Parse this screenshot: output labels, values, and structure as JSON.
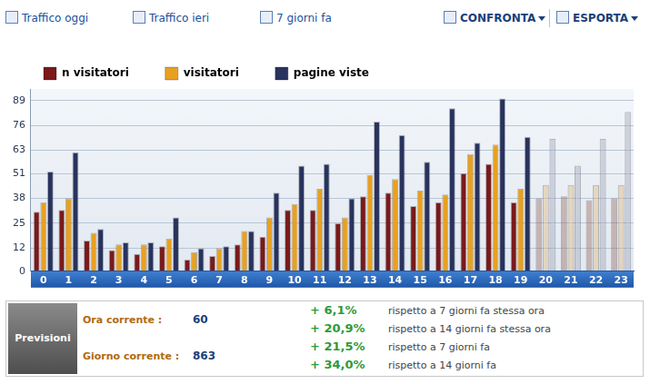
{
  "chart_data": {
    "type": "bar",
    "categories": [
      "0",
      "1",
      "2",
      "3",
      "4",
      "5",
      "6",
      "7",
      "8",
      "9",
      "10",
      "11",
      "12",
      "13",
      "14",
      "15",
      "16",
      "17",
      "18",
      "19",
      "20",
      "21",
      "22",
      "23"
    ],
    "series": [
      {
        "name": "n visitatori",
        "color": "#7a1a1a",
        "colors": [
          "#7a1a1a",
          "#7a1a1a",
          "#7a1a1a",
          "#7a1a1a",
          "#7a1a1a",
          "#7a1a1a",
          "#7a1a1a",
          "#7a1a1a",
          "#7a1a1a",
          "#7a1a1a",
          "#7a1a1a",
          "#7a1a1a",
          "#7a1a1a",
          "#7a1a1a",
          "#7a1a1a",
          "#7a1a1a",
          "#7a1a1a",
          "#7a1a1a",
          "#7a1a1a",
          "#7a1a1a",
          "rgba(160,110,100,0.45)",
          "rgba(160,110,100,0.45)",
          "rgba(160,110,100,0.45)",
          "rgba(160,110,100,0.45)"
        ],
        "values": [
          31,
          32,
          16,
          11,
          9,
          13,
          6,
          8,
          14,
          18,
          32,
          32,
          25,
          39,
          41,
          34,
          36,
          51,
          56,
          36,
          38,
          39,
          37,
          38
        ]
      },
      {
        "name": "visitatori",
        "color": "#e8a020",
        "colors": [
          "#e8a020",
          "#e8a020",
          "#e8a020",
          "#e8a020",
          "#e8a020",
          "#e8a020",
          "#e8a020",
          "#e8a020",
          "#e8a020",
          "#e8a020",
          "#e8a020",
          "#e8a020",
          "#e8a020",
          "#e8a020",
          "#e8a020",
          "#e8a020",
          "#e8a020",
          "#e8a020",
          "#e8a020",
          "#e8a020",
          "rgba(225,190,140,0.5)",
          "rgba(225,190,140,0.5)",
          "rgba(225,190,140,0.5)",
          "rgba(225,190,140,0.5)"
        ],
        "values": [
          36,
          38,
          20,
          14,
          14,
          17,
          10,
          12,
          21,
          28,
          35,
          43,
          28,
          50,
          48,
          42,
          40,
          61,
          66,
          43,
          45,
          45,
          45,
          45
        ]
      },
      {
        "name": "pagine viste",
        "color": "#28335e",
        "colors": [
          "#28335e",
          "#28335e",
          "#28335e",
          "#28335e",
          "#28335e",
          "#28335e",
          "#28335e",
          "#28335e",
          "#28335e",
          "#28335e",
          "#28335e",
          "#28335e",
          "#28335e",
          "#28335e",
          "#28335e",
          "#28335e",
          "#28335e",
          "#28335e",
          "#28335e",
          "#28335e",
          "rgba(170,175,195,0.5)",
          "rgba(170,175,195,0.5)",
          "rgba(170,175,195,0.5)",
          "rgba(170,175,195,0.5)"
        ],
        "values": [
          52,
          62,
          22,
          15,
          15,
          28,
          12,
          13,
          21,
          41,
          55,
          56,
          38,
          78,
          71,
          57,
          85,
          67,
          90,
          70,
          69,
          55,
          69,
          83
        ]
      }
    ],
    "ylim": [
      0,
      95
    ],
    "yticks": [
      0,
      12,
      25,
      38,
      51,
      63,
      76,
      89
    ],
    "grid": true,
    "legend": "top"
  },
  "toolbar": {
    "items": [
      "Traffico oggi",
      "Traffico ieri",
      "7 giorni fa"
    ],
    "menus": [
      "CONFRONTA",
      "ESPORTA"
    ]
  },
  "forecast_panel": {
    "title": "Previsioni",
    "rows": [
      {
        "label": "Ora corrente :",
        "value": 60
      },
      {
        "label": "Giorno corrente :",
        "value": 863
      }
    ],
    "comparisons": [
      {
        "change": "+ 6,1%",
        "text": "rispetto a 7 giorni fa stessa ora"
      },
      {
        "change": "+ 20,9%",
        "text": "rispetto a 14 giorni fa stessa ora"
      },
      {
        "change": "+ 21,5%",
        "text": "rispetto a 7 giorni fa"
      },
      {
        "change": "+ 34,0%",
        "text": "rispetto a 14 giorni fa"
      }
    ]
  }
}
